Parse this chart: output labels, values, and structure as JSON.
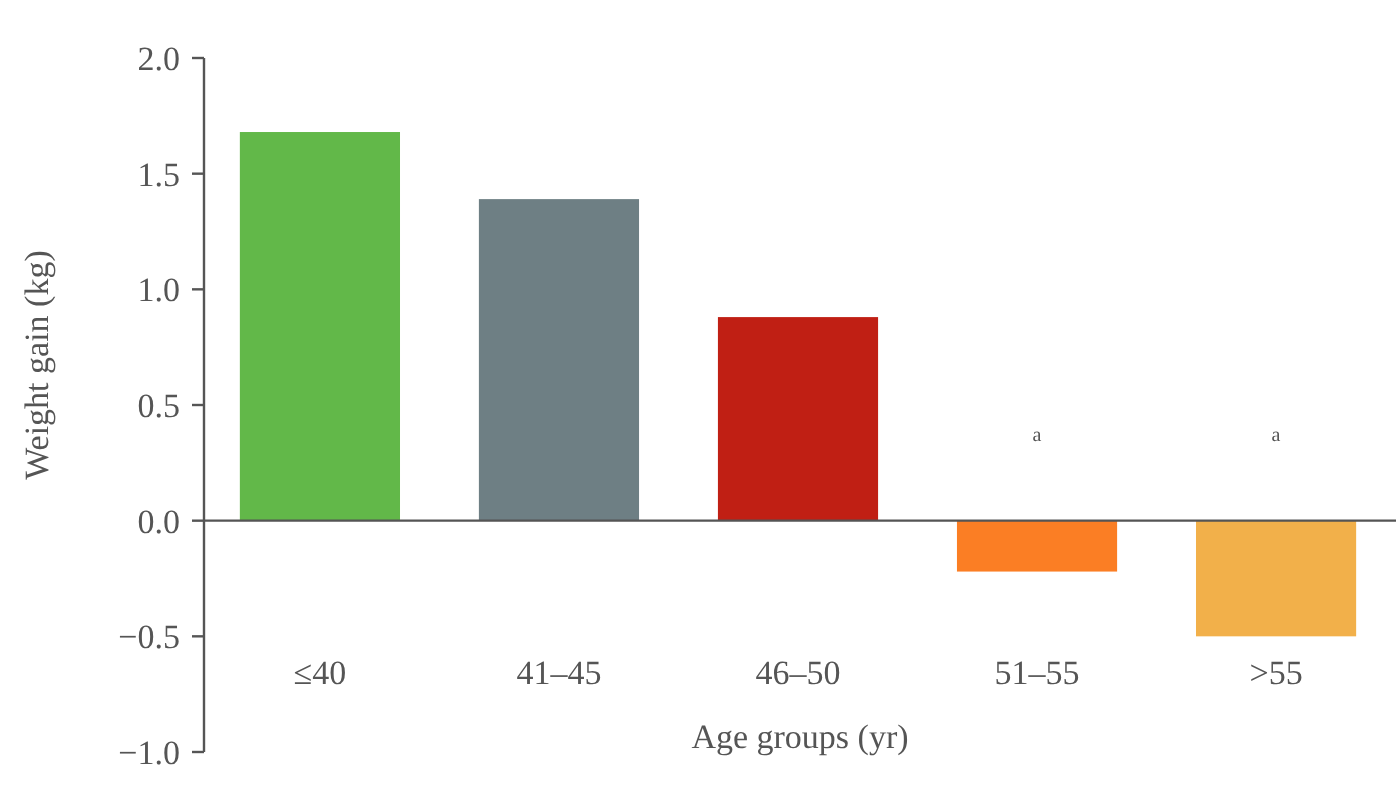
{
  "chart_data": {
    "type": "bar",
    "xlabel": "Age groups (yr)",
    "ylabel": "Weight gain (kg)",
    "categories": [
      "≤40",
      "41–45",
      "46–50",
      "51–55",
      ">55"
    ],
    "values": [
      1.68,
      1.39,
      0.88,
      -0.22,
      -0.5
    ],
    "colors": [
      "#62b849",
      "#6e7f84",
      "#c01f14",
      "#fb7e24",
      "#f2b04a"
    ],
    "ylim": [
      -1.0,
      2.0
    ],
    "yticks": [
      {
        "value": -1,
        "label": "−1.0"
      },
      {
        "value": -0.5,
        "label": "−0.5"
      },
      {
        "value": 0,
        "label": "0.0"
      },
      {
        "value": 0.5,
        "label": "0.5"
      },
      {
        "value": 1,
        "label": "1.0"
      },
      {
        "value": 1.5,
        "label": "1.5"
      },
      {
        "value": 2,
        "label": "2.0"
      }
    ],
    "annotations": [
      "a",
      "a"
    ]
  }
}
